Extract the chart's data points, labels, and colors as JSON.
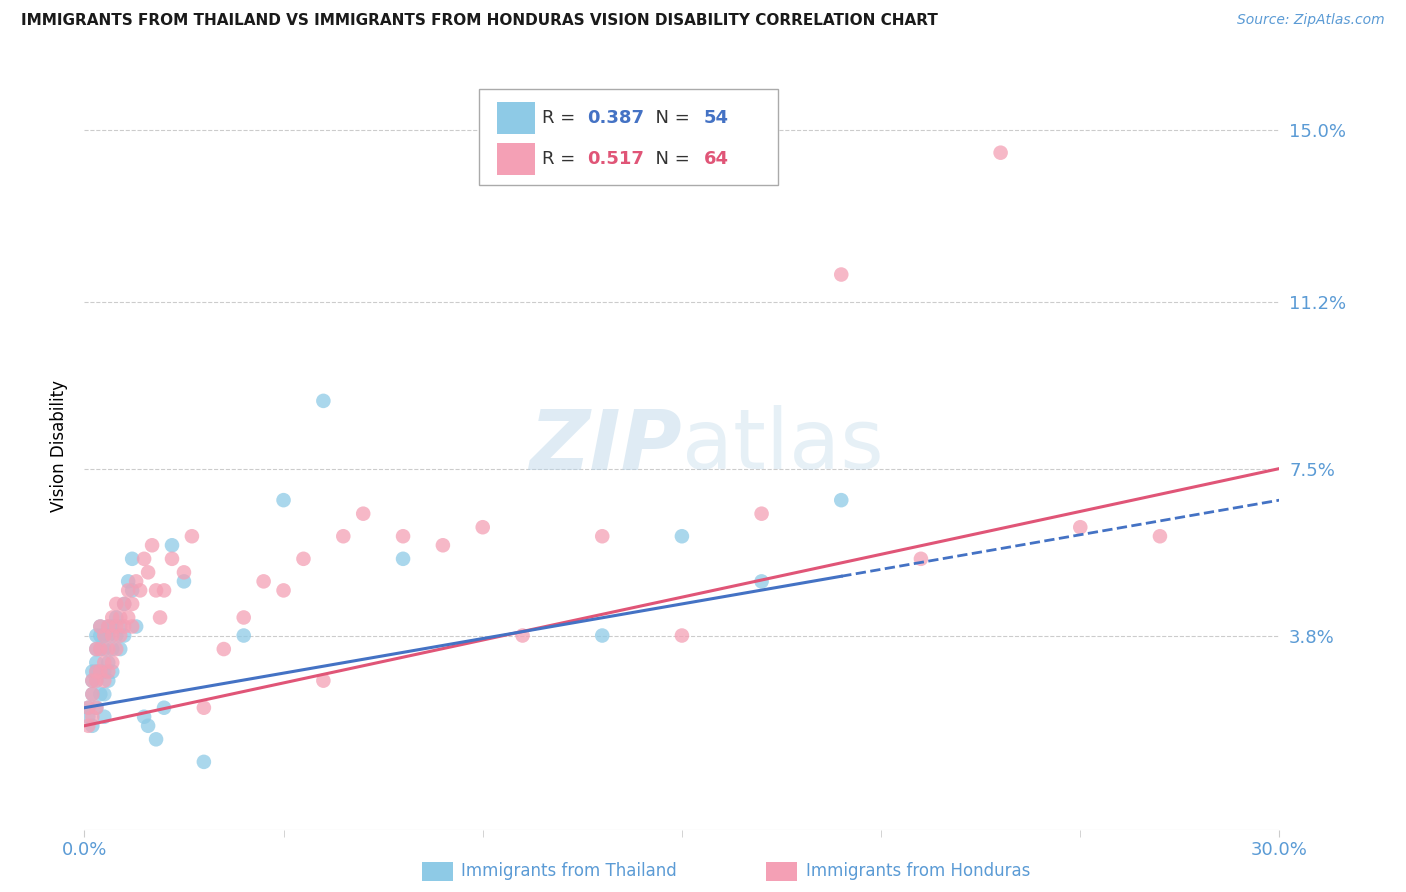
{
  "title": "IMMIGRANTS FROM THAILAND VS IMMIGRANTS FROM HONDURAS VISION DISABILITY CORRELATION CHART",
  "source": "Source: ZipAtlas.com",
  "ylabel": "Vision Disability",
  "xlim": [
    0.0,
    0.3
  ],
  "ylim": [
    -0.005,
    0.165
  ],
  "yticks": [
    0.038,
    0.075,
    0.112,
    0.15
  ],
  "ytick_labels": [
    "3.8%",
    "7.5%",
    "11.2%",
    "15.0%"
  ],
  "xtick_labels": [
    "0.0%",
    "30.0%"
  ],
  "xtick_positions": [
    0.0,
    0.3
  ],
  "thailand_color": "#8ecae6",
  "honduras_color": "#f4a0b5",
  "trend_thailand_color": "#4472c4",
  "trend_honduras_color": "#e05577",
  "R_thailand": 0.387,
  "N_thailand": 54,
  "R_honduras": 0.517,
  "N_honduras": 64,
  "watermark_text": "ZIPatlas",
  "background_color": "#ffffff",
  "grid_color": "#cccccc",
  "label_color": "#5b9bd5",
  "title_color": "#1a1a1a",
  "thailand_x": [
    0.001,
    0.001,
    0.002,
    0.002,
    0.002,
    0.002,
    0.003,
    0.003,
    0.003,
    0.003,
    0.003,
    0.003,
    0.004,
    0.004,
    0.004,
    0.004,
    0.004,
    0.005,
    0.005,
    0.005,
    0.005,
    0.005,
    0.006,
    0.006,
    0.006,
    0.006,
    0.007,
    0.007,
    0.007,
    0.008,
    0.008,
    0.009,
    0.009,
    0.01,
    0.01,
    0.011,
    0.012,
    0.012,
    0.013,
    0.015,
    0.016,
    0.018,
    0.02,
    0.022,
    0.025,
    0.03,
    0.04,
    0.05,
    0.06,
    0.08,
    0.13,
    0.15,
    0.17,
    0.19
  ],
  "thailand_y": [
    0.02,
    0.022,
    0.018,
    0.025,
    0.03,
    0.028,
    0.022,
    0.028,
    0.03,
    0.032,
    0.035,
    0.038,
    0.025,
    0.03,
    0.035,
    0.038,
    0.04,
    0.02,
    0.025,
    0.03,
    0.035,
    0.038,
    0.028,
    0.032,
    0.038,
    0.04,
    0.03,
    0.035,
    0.04,
    0.038,
    0.042,
    0.035,
    0.04,
    0.038,
    0.045,
    0.05,
    0.048,
    0.055,
    0.04,
    0.02,
    0.018,
    0.015,
    0.022,
    0.058,
    0.05,
    0.01,
    0.038,
    0.068,
    0.09,
    0.055,
    0.038,
    0.06,
    0.05,
    0.068
  ],
  "honduras_x": [
    0.001,
    0.001,
    0.002,
    0.002,
    0.002,
    0.003,
    0.003,
    0.003,
    0.003,
    0.004,
    0.004,
    0.004,
    0.005,
    0.005,
    0.005,
    0.006,
    0.006,
    0.006,
    0.007,
    0.007,
    0.007,
    0.008,
    0.008,
    0.008,
    0.009,
    0.009,
    0.01,
    0.01,
    0.011,
    0.011,
    0.012,
    0.012,
    0.013,
    0.014,
    0.015,
    0.016,
    0.017,
    0.018,
    0.019,
    0.02,
    0.022,
    0.025,
    0.027,
    0.03,
    0.035,
    0.04,
    0.045,
    0.05,
    0.055,
    0.06,
    0.065,
    0.07,
    0.08,
    0.09,
    0.1,
    0.11,
    0.13,
    0.15,
    0.17,
    0.19,
    0.21,
    0.23,
    0.25,
    0.27
  ],
  "honduras_y": [
    0.018,
    0.022,
    0.02,
    0.025,
    0.028,
    0.022,
    0.028,
    0.03,
    0.035,
    0.03,
    0.035,
    0.04,
    0.028,
    0.032,
    0.038,
    0.03,
    0.035,
    0.04,
    0.032,
    0.038,
    0.042,
    0.035,
    0.04,
    0.045,
    0.038,
    0.042,
    0.04,
    0.045,
    0.042,
    0.048,
    0.04,
    0.045,
    0.05,
    0.048,
    0.055,
    0.052,
    0.058,
    0.048,
    0.042,
    0.048,
    0.055,
    0.052,
    0.06,
    0.022,
    0.035,
    0.042,
    0.05,
    0.048,
    0.055,
    0.028,
    0.06,
    0.065,
    0.06,
    0.058,
    0.062,
    0.038,
    0.06,
    0.038,
    0.065,
    0.118,
    0.055,
    0.145,
    0.062,
    0.06
  ],
  "trend_th_x0": 0.0,
  "trend_th_y0": 0.022,
  "trend_th_x1": 0.3,
  "trend_th_y1": 0.068,
  "trend_hn_x0": 0.0,
  "trend_hn_y0": 0.018,
  "trend_hn_x1": 0.3,
  "trend_hn_y1": 0.075
}
